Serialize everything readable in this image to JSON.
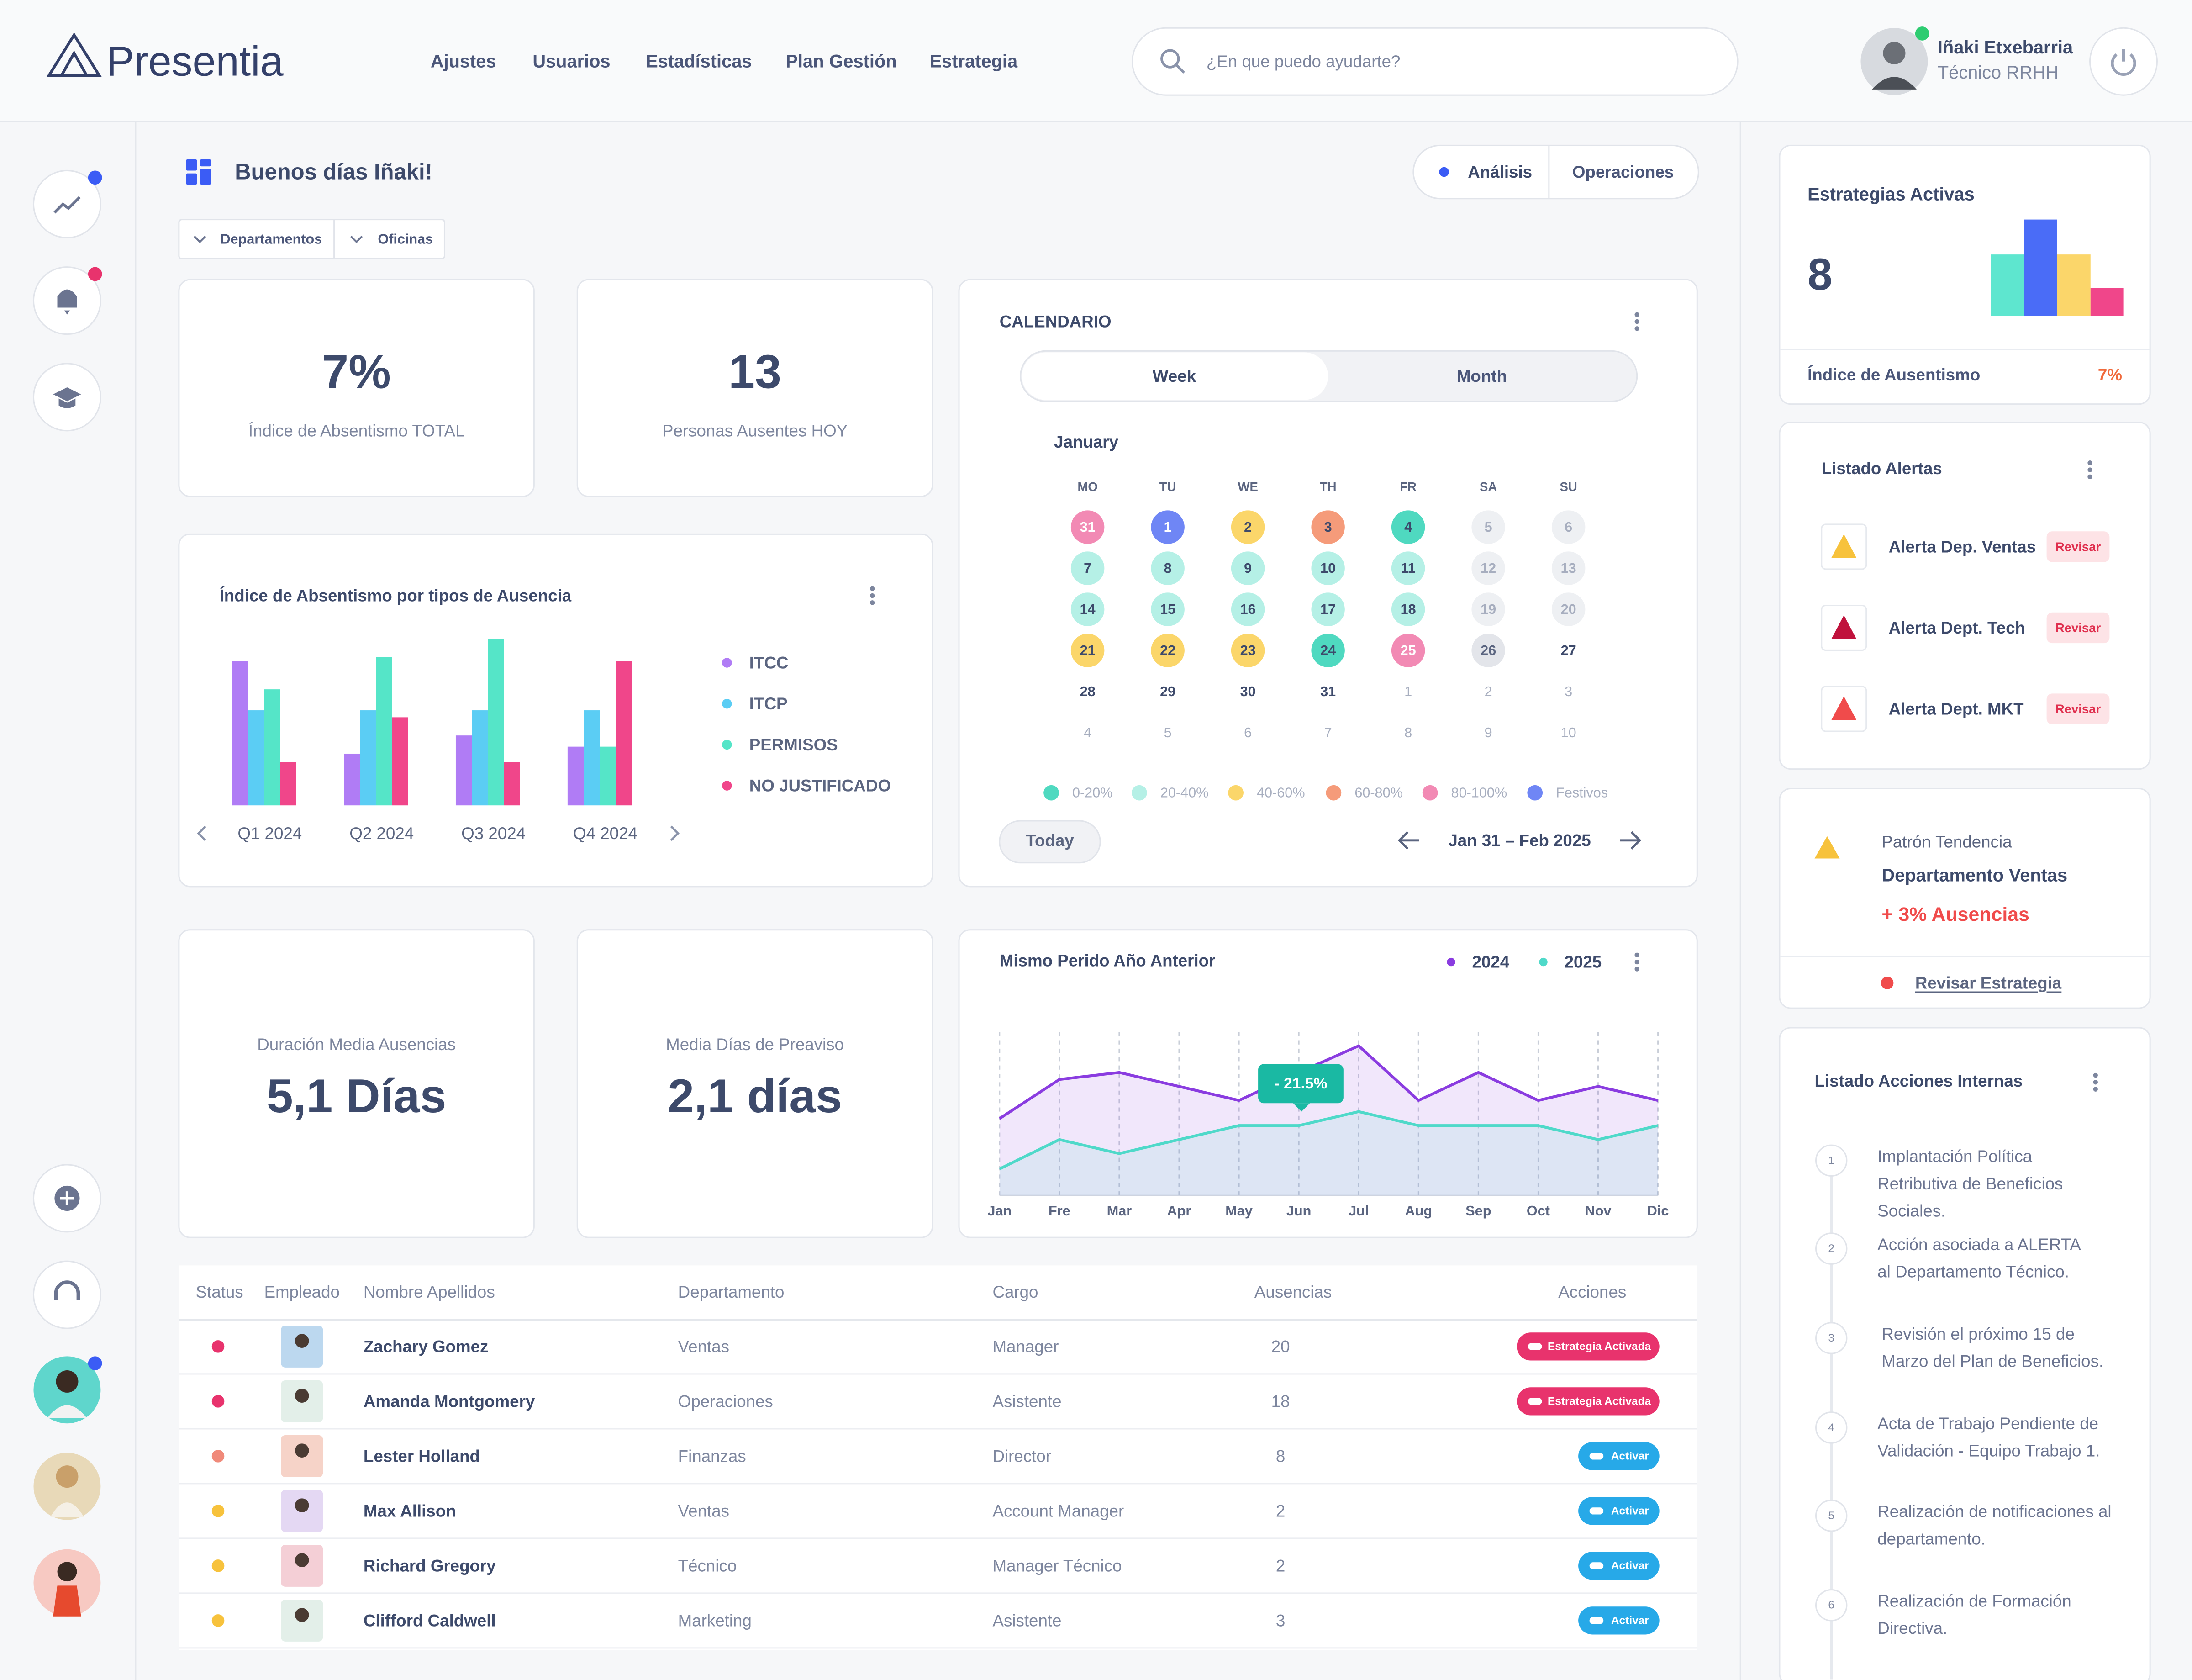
{
  "header": {
    "logo": "Presentia",
    "nav": [
      "Ajustes",
      "Usuarios",
      "Estadísticas",
      "Plan Gestión",
      "Estrategia"
    ],
    "search": "¿En que puedo ayudarte?",
    "user": {
      "name": "Iñaki Etxebarria",
      "role": "Técnico RRHH"
    }
  },
  "greeting": "Buenos días Iñaki!",
  "tabs": [
    "Análisis",
    "Operaciones"
  ],
  "filters": [
    "Departamentos",
    "Oficinas"
  ],
  "kpis": [
    {
      "value": "7%",
      "label": "Índice de Absentismo TOTAL"
    },
    {
      "value": "13",
      "label": "Personas Ausentes HOY"
    },
    {
      "label": "Duración Media Ausencias",
      "value": "5,1 Días"
    },
    {
      "label": "Media  Días de Preaviso",
      "value": "2,1 días"
    }
  ],
  "calendar": {
    "title": "CALENDARIO",
    "views": [
      "Week",
      "Month"
    ],
    "month": "January",
    "weekdays": [
      "MO",
      "TU",
      "WE",
      "TH",
      "FR",
      "SA",
      "SU"
    ],
    "weeks": [
      [
        {
          "day": "31",
          "level": 4
        },
        {
          "day": "1",
          "level": 5
        },
        {
          "day": "2",
          "level": 2
        },
        {
          "day": "3",
          "level": 3
        },
        {
          "day": "4",
          "level": 0
        },
        {
          "day": "5",
          "style": "weekend"
        },
        {
          "day": "6",
          "style": "weekend"
        }
      ],
      [
        {
          "day": "7",
          "level": 1
        },
        {
          "day": "8",
          "level": 1
        },
        {
          "day": "9",
          "level": 1
        },
        {
          "day": "10",
          "level": 1
        },
        {
          "day": "11",
          "level": 1
        },
        {
          "day": "12",
          "style": "weekend"
        },
        {
          "day": "13",
          "style": "weekend"
        }
      ],
      [
        {
          "day": "14",
          "level": 1
        },
        {
          "day": "15",
          "level": 1
        },
        {
          "day": "16",
          "level": 1
        },
        {
          "day": "17",
          "level": 1
        },
        {
          "day": "18",
          "level": 1
        },
        {
          "day": "19",
          "style": "weekend"
        },
        {
          "day": "20",
          "style": "weekend"
        }
      ],
      [
        {
          "day": "21",
          "level": 2
        },
        {
          "day": "22",
          "level": 2
        },
        {
          "day": "23",
          "level": 2
        },
        {
          "day": "24",
          "level": 0
        },
        {
          "day": "25",
          "level": 4
        },
        {
          "day": "26",
          "style": "weekend-dark"
        },
        {
          "day": "27"
        }
      ],
      [
        {
          "day": "28",
          "style": "bold"
        },
        {
          "day": "29",
          "style": "bold"
        },
        {
          "day": "30",
          "style": "bold"
        },
        {
          "day": "31",
          "style": "bold"
        },
        {
          "day": "1",
          "style": "muted"
        },
        {
          "day": "2",
          "style": "muted"
        },
        {
          "day": "3",
          "style": "muted"
        }
      ],
      [
        {
          "day": "4",
          "style": "muted"
        },
        {
          "day": "5",
          "style": "muted"
        },
        {
          "day": "6",
          "style": "muted"
        },
        {
          "day": "7",
          "style": "muted"
        },
        {
          "day": "8",
          "style": "muted"
        },
        {
          "day": "9",
          "style": "muted"
        },
        {
          "day": "10",
          "style": "muted"
        }
      ]
    ],
    "legend": [
      {
        "label": "0-20%",
        "color": "#4fd9c0"
      },
      {
        "label": "20-40%",
        "color": "#b5f0e6"
      },
      {
        "label": "40-60%",
        "color": "#fbd66a"
      },
      {
        "label": "60-80%",
        "color": "#f59b7a"
      },
      {
        "label": "80-100%",
        "color": "#f28ab4"
      },
      {
        "label": "Festivos",
        "color": "#6f86f5"
      }
    ],
    "today": "Today",
    "range": "Jan 31 – Feb 2025"
  },
  "chart_data": [
    {
      "type": "bar",
      "title": "Índice de Absentismo por tipos de Ausencia",
      "categories": [
        "Q1 2024",
        "Q2 2024",
        "Q3 2024",
        "Q4 2024"
      ],
      "series": [
        {
          "name": "ITCC",
          "color": "#b07cf5",
          "values": [
            103,
            37,
            50,
            42
          ]
        },
        {
          "name": "ITCP",
          "color": "#5bcdf4",
          "values": [
            68,
            68,
            68,
            68
          ]
        },
        {
          "name": "PERMISOS",
          "color": "#55e5c8",
          "values": [
            83,
            106,
            119,
            42
          ]
        },
        {
          "name": "NO JUSTIFICADO",
          "color": "#f0468a",
          "values": [
            31,
            63,
            31,
            103
          ]
        }
      ]
    },
    {
      "type": "line",
      "title": "Mismo Perido Año Anterior",
      "categories": [
        "Jan",
        "Fre",
        "Mar",
        "Apr",
        "May",
        "Jun",
        "Jul",
        "Aug",
        "Sep",
        "Oct",
        "Nov",
        "Dic"
      ],
      "grid": true,
      "series": [
        {
          "name": "2024",
          "color": "#8a3ce0",
          "values": [
            55,
            83,
            88,
            78,
            68,
            88,
            107,
            68,
            88,
            68,
            78,
            68
          ]
        },
        {
          "name": "2025",
          "color": "#4fd9c9",
          "values": [
            19,
            40,
            30,
            40,
            50,
            50,
            60,
            50,
            50,
            50,
            40,
            50
          ]
        }
      ],
      "annotation": "- 21.5%"
    },
    {
      "type": "bar",
      "title": "Estrategias Activas",
      "values": [
        44,
        69,
        44,
        20
      ],
      "colors": [
        "#5ee6cf",
        "#4a6cf7",
        "#fbd66a",
        "#f0468a"
      ]
    }
  ],
  "table": {
    "headers": [
      "Status",
      "Empleado",
      "Nombre Apellidos",
      "Departamento",
      "Cargo",
      "Ausencias",
      "Acciones"
    ],
    "rows": [
      {
        "status": "#e8336d",
        "name": "Zachary Gomez",
        "department": "Ventas",
        "role": "Manager",
        "absences": 20,
        "action": "Estrategia Activada",
        "action_color": "#e8336d"
      },
      {
        "status": "#e8336d",
        "name": "Amanda Montgomery",
        "department": "Operaciones",
        "role": "Asistente",
        "absences": 18,
        "action": "Estrategia Activada",
        "action_color": "#e8336d"
      },
      {
        "status": "#f08a7a",
        "name": "Lester Holland",
        "department": "Finanzas",
        "role": "Director",
        "absences": 8,
        "action": "Activar",
        "action_color": "#27a9e8"
      },
      {
        "status": "#f7c23c",
        "name": "Max Allison",
        "department": "Ventas",
        "role": "Account Manager",
        "absences": 2,
        "action": "Activar",
        "action_color": "#27a9e8"
      },
      {
        "status": "#f7c23c",
        "name": "Richard Gregory",
        "department": "Técnico",
        "role": "Manager Técnico",
        "absences": 2,
        "action": "Activar",
        "action_color": "#27a9e8"
      },
      {
        "status": "#f7c23c",
        "name": "Clifford Caldwell",
        "department": "Marketing",
        "role": "Asistente",
        "absences": 3,
        "action": "Activar",
        "action_color": "#27a9e8"
      }
    ]
  },
  "strategies": {
    "count": 8,
    "index_label": "Índice de Ausentismo",
    "index_value": "7%"
  },
  "alerts": {
    "title": "Listado Alertas",
    "items": [
      {
        "text": "Alerta Dep. Ventas",
        "action": "Revisar",
        "icon_color": "#f7c23c"
      },
      {
        "text": "Alerta Dept. Tech",
        "action": "Revisar",
        "icon_color": "#c0123c"
      },
      {
        "text": "Alerta Dept. MKT",
        "action": "Revisar",
        "icon_color": "#f04b4b"
      }
    ]
  },
  "trend": {
    "title": "Patrón Tendencia",
    "department": "Departamento Ventas",
    "change": "+ 3% Ausencias",
    "link": "Revisar Estrategia"
  },
  "actions": {
    "title": "Listado Acciones Internas",
    "items": [
      {
        "number": 1,
        "lines": [
          "Implantación Política",
          "Retributiva de Beneficios",
          "Sociales."
        ]
      },
      {
        "number": 2,
        "lines": [
          "Acción asociada a ALERTA",
          "al Departamento Técnico."
        ]
      },
      {
        "number": 3,
        "lines": [
          "Revisión el próximo 15 de",
          "Marzo del Plan de Beneficios."
        ]
      },
      {
        "number": 4,
        "lines": [
          "Acta de Trabajo Pendiente de",
          "Validación - Equipo Trabajo 1."
        ]
      },
      {
        "number": 5,
        "lines": [
          "Realización de notificaciones al",
          "departamento."
        ]
      },
      {
        "number": 6,
        "lines": [
          "Realización de Formación",
          "Directiva."
        ]
      }
    ]
  }
}
